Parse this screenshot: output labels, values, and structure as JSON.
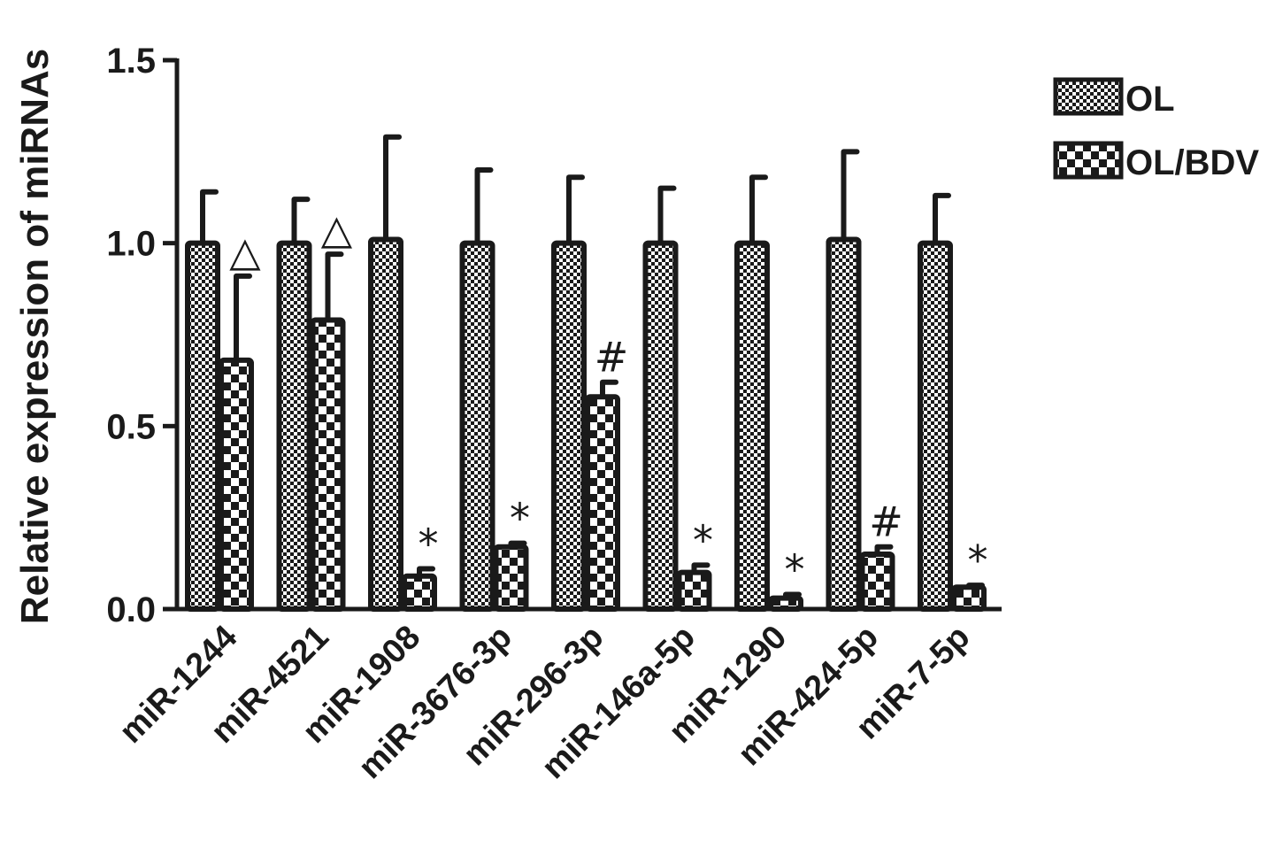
{
  "chart_data": {
    "type": "bar",
    "title": "",
    "xlabel": "",
    "ylabel": "Relative expression of miRNAs",
    "ylim": [
      0,
      1.5
    ],
    "yticks": [
      "0.0",
      "0.5",
      "1.0",
      "1.5"
    ],
    "grid": false,
    "legend_position": "top-right",
    "categories": [
      "miR-1244",
      "miR-4521",
      "miR-1908",
      "miR-3676-3p",
      "miR-296-3p",
      "miR-146a-5p",
      "miR-1290",
      "miR-424-5p",
      "miR-7-5p"
    ],
    "series": [
      {
        "name": "OL",
        "pattern": "fine-checker",
        "values": [
          1.0,
          1.0,
          1.01,
          1.0,
          1.0,
          1.0,
          1.0,
          1.01,
          1.0
        ],
        "errors": [
          0.14,
          0.12,
          0.28,
          0.2,
          0.18,
          0.15,
          0.18,
          0.24,
          0.13
        ]
      },
      {
        "name": "OL/BDV",
        "pattern": "coarse-checker",
        "values": [
          0.68,
          0.79,
          0.09,
          0.17,
          0.58,
          0.1,
          0.03,
          0.15,
          0.06
        ],
        "errors": [
          0.23,
          0.18,
          0.02,
          0.01,
          0.04,
          0.02,
          0.01,
          0.02,
          0.005
        ]
      }
    ],
    "annotations": [
      "△",
      "△",
      "*",
      "*",
      "#",
      "*",
      "*",
      "#",
      "*"
    ]
  },
  "colors": {
    "ink": "#1a1a1a",
    "background": "#ffffff"
  }
}
